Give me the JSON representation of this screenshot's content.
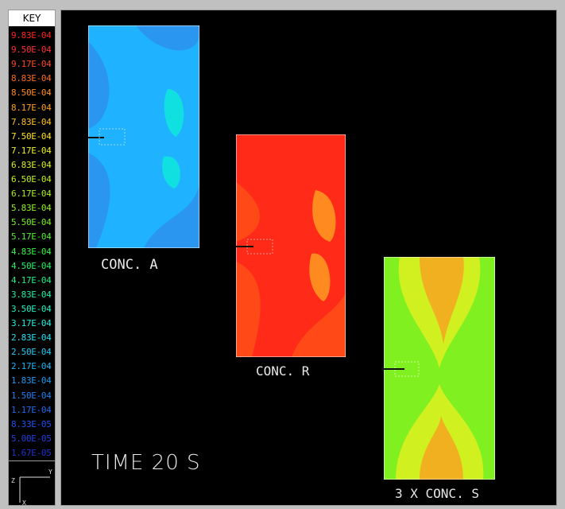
{
  "key": {
    "title": "KEY",
    "entries": [
      {
        "value": "9.83E-04",
        "color": "#ff2020"
      },
      {
        "value": "9.50E-04",
        "color": "#ff3030"
      },
      {
        "value": "9.17E-04",
        "color": "#ff4a20"
      },
      {
        "value": "8.83E-04",
        "color": "#ff6a20"
      },
      {
        "value": "8.50E-04",
        "color": "#ff8a20"
      },
      {
        "value": "8.17E-04",
        "color": "#ffa020"
      },
      {
        "value": "7.83E-04",
        "color": "#ffc020"
      },
      {
        "value": "7.50E-04",
        "color": "#ffe020"
      },
      {
        "value": "7.17E-04",
        "color": "#f0f020"
      },
      {
        "value": "6.83E-04",
        "color": "#d8f020"
      },
      {
        "value": "6.50E-04",
        "color": "#c0f020"
      },
      {
        "value": "6.17E-04",
        "color": "#a8f020"
      },
      {
        "value": "5.83E-04",
        "color": "#90f020"
      },
      {
        "value": "5.50E-04",
        "color": "#70f020"
      },
      {
        "value": "5.17E-04",
        "color": "#50f030"
      },
      {
        "value": "4.83E-04",
        "color": "#30f040"
      },
      {
        "value": "4.50E-04",
        "color": "#20f060"
      },
      {
        "value": "4.17E-04",
        "color": "#20f080"
      },
      {
        "value": "3.83E-04",
        "color": "#20f0a0"
      },
      {
        "value": "3.50E-04",
        "color": "#20f0c0"
      },
      {
        "value": "3.17E-04",
        "color": "#20f0e0"
      },
      {
        "value": "2.83E-04",
        "color": "#20e0f0"
      },
      {
        "value": "2.50E-04",
        "color": "#20c8f0"
      },
      {
        "value": "2.17E-04",
        "color": "#20b0f0"
      },
      {
        "value": "1.83E-04",
        "color": "#2098f0"
      },
      {
        "value": "1.50E-04",
        "color": "#2080f0"
      },
      {
        "value": "1.17E-04",
        "color": "#2068f0"
      },
      {
        "value": "8.33E-05",
        "color": "#2050f0"
      },
      {
        "value": "5.00E-05",
        "color": "#2040e0"
      },
      {
        "value": "1.67E-05",
        "color": "#2030d0"
      }
    ]
  },
  "axis": {
    "z_label": "Z",
    "y_label": "Y",
    "x_label": "X"
  },
  "plots": {
    "conc_a": {
      "label": "CONC. A",
      "fill": "#1fb3ff",
      "band": "#2a96f0",
      "hot": "#10e0e0"
    },
    "conc_r": {
      "label": "CONC. R",
      "fill": "#ff2a18",
      "band": "#ff4a18",
      "hot": "#ff8a20"
    },
    "conc_s": {
      "label": "3 X CONC. S",
      "fill": "#80f020",
      "band": "#d0f020",
      "hot": "#f0b020"
    }
  },
  "time_label": "TIME 20 S"
}
